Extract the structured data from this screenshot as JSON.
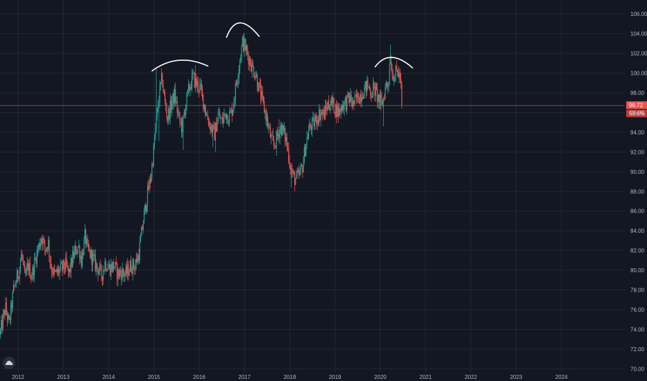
{
  "chart_data": {
    "type": "candlestick",
    "title": "",
    "xlabel": "",
    "ylabel": "",
    "x_range": [
      2011.6,
      2025.4
    ],
    "ylim": [
      69.6,
      107.0
    ],
    "x_ticks": [
      "2012",
      "2013",
      "2014",
      "2015",
      "2016",
      "2017",
      "2018",
      "2019",
      "2020",
      "2021",
      "2022",
      "2023",
      "2024"
    ],
    "y_ticks": [
      "70.00",
      "72.00",
      "74.00",
      "76.00",
      "78.00",
      "80.00",
      "82.00",
      "84.00",
      "86.00",
      "88.00",
      "90.00",
      "92.00",
      "94.00",
      "96.00",
      "98.00",
      "100.00",
      "102.00",
      "104.00",
      "106.00"
    ],
    "colors": {
      "background": "#131722",
      "grid": "#232734",
      "up": "#26a69a",
      "down": "#ef5350",
      "price_line": "#ef5350",
      "annotation": "#ffffff"
    },
    "price_line": {
      "value": 96.72,
      "label": "96.72",
      "countdown": "58:6%"
    },
    "path": [
      [
        2011.6,
        73.5
      ],
      [
        2011.72,
        76.2
      ],
      [
        2011.8,
        74.5
      ],
      [
        2011.9,
        78.0
      ],
      [
        2012.02,
        80.0
      ],
      [
        2012.08,
        81.7
      ],
      [
        2012.15,
        79.0
      ],
      [
        2012.22,
        80.5
      ],
      [
        2012.3,
        79.4
      ],
      [
        2012.4,
        81.5
      ],
      [
        2012.52,
        83.5
      ],
      [
        2012.6,
        82.0
      ],
      [
        2012.66,
        83.0
      ],
      [
        2012.72,
        80.5
      ],
      [
        2012.8,
        79.5
      ],
      [
        2012.92,
        80.0
      ],
      [
        2013.05,
        80.5
      ],
      [
        2013.12,
        79.6
      ],
      [
        2013.22,
        81.5
      ],
      [
        2013.33,
        82.5
      ],
      [
        2013.4,
        81.0
      ],
      [
        2013.48,
        83.5
      ],
      [
        2013.53,
        82.0
      ],
      [
        2013.6,
        81.6
      ],
      [
        2013.72,
        80.5
      ],
      [
        2013.85,
        79.5
      ],
      [
        2013.92,
        80.8
      ],
      [
        2014.02,
        80.2
      ],
      [
        2014.12,
        80.5
      ],
      [
        2014.2,
        79.6
      ],
      [
        2014.28,
        79.8
      ],
      [
        2014.38,
        79.6
      ],
      [
        2014.48,
        80.4
      ],
      [
        2014.58,
        80.5
      ],
      [
        2014.66,
        81.5
      ],
      [
        2014.72,
        83.5
      ],
      [
        2014.78,
        85.5
      ],
      [
        2014.86,
        87.8
      ],
      [
        2014.94,
        89.8
      ],
      [
        2015.0,
        92.5
      ],
      [
        2015.06,
        95.5
      ],
      [
        2015.12,
        98.0
      ],
      [
        2015.18,
        99.5
      ],
      [
        2015.24,
        97.0
      ],
      [
        2015.3,
        95.5
      ],
      [
        2015.38,
        96.8
      ],
      [
        2015.46,
        97.8
      ],
      [
        2015.54,
        95.5
      ],
      [
        2015.62,
        94.5
      ],
      [
        2015.7,
        96.8
      ],
      [
        2015.78,
        98.5
      ],
      [
        2015.86,
        99.6
      ],
      [
        2015.92,
        99.0
      ],
      [
        2016.02,
        98.5
      ],
      [
        2016.1,
        97.0
      ],
      [
        2016.18,
        95.5
      ],
      [
        2016.26,
        94.5
      ],
      [
        2016.34,
        93.8
      ],
      [
        2016.42,
        95.8
      ],
      [
        2016.5,
        95.0
      ],
      [
        2016.58,
        96.0
      ],
      [
        2016.66,
        95.5
      ],
      [
        2016.74,
        96.5
      ],
      [
        2016.82,
        99.0
      ],
      [
        2016.9,
        101.5
      ],
      [
        2016.96,
        103.2
      ],
      [
        2017.02,
        102.5
      ],
      [
        2017.1,
        101.5
      ],
      [
        2017.18,
        100.5
      ],
      [
        2017.24,
        100.0
      ],
      [
        2017.32,
        98.5
      ],
      [
        2017.4,
        97.0
      ],
      [
        2017.48,
        95.6
      ],
      [
        2017.56,
        93.8
      ],
      [
        2017.64,
        92.5
      ],
      [
        2017.72,
        93.5
      ],
      [
        2017.8,
        94.6
      ],
      [
        2017.86,
        94.0
      ],
      [
        2017.92,
        93.2
      ],
      [
        2018.0,
        91.0
      ],
      [
        2018.06,
        89.6
      ],
      [
        2018.12,
        89.2
      ],
      [
        2018.2,
        89.5
      ],
      [
        2018.28,
        90.5
      ],
      [
        2018.36,
        93.0
      ],
      [
        2018.44,
        94.5
      ],
      [
        2018.52,
        94.8
      ],
      [
        2018.6,
        95.5
      ],
      [
        2018.68,
        96.0
      ],
      [
        2018.76,
        95.8
      ],
      [
        2018.84,
        96.8
      ],
      [
        2018.92,
        97.0
      ],
      [
        2019.0,
        96.5
      ],
      [
        2019.08,
        96.0
      ],
      [
        2019.16,
        96.8
      ],
      [
        2019.24,
        97.0
      ],
      [
        2019.32,
        97.5
      ],
      [
        2019.4,
        96.8
      ],
      [
        2019.48,
        97.4
      ],
      [
        2019.56,
        97.8
      ],
      [
        2019.64,
        98.3
      ],
      [
        2019.72,
        98.8
      ],
      [
        2019.8,
        98.0
      ],
      [
        2019.86,
        98.5
      ],
      [
        2019.92,
        97.8
      ],
      [
        2020.0,
        97.0
      ],
      [
        2020.06,
        97.2
      ],
      [
        2020.12,
        98.8
      ],
      [
        2020.18,
        99.0
      ],
      [
        2020.22,
        102.0
      ],
      [
        2020.26,
        100.0
      ],
      [
        2020.32,
        99.8
      ],
      [
        2020.38,
        100.2
      ],
      [
        2020.44,
        99.5
      ],
      [
        2020.48,
        96.7
      ]
    ],
    "spikes": [
      {
        "x": 2015.05,
        "y": 100.4
      },
      {
        "x": 2015.1,
        "y": 93.1
      },
      {
        "x": 2015.65,
        "y": 92.2
      },
      {
        "x": 2015.92,
        "y": 100.8
      },
      {
        "x": 2016.3,
        "y": 92.5
      },
      {
        "x": 2016.36,
        "y": 92.0
      },
      {
        "x": 2016.96,
        "y": 103.8
      },
      {
        "x": 2017.7,
        "y": 91.6
      },
      {
        "x": 2017.76,
        "y": 95.3
      },
      {
        "x": 2018.04,
        "y": 88.4
      },
      {
        "x": 2018.1,
        "y": 88.6
      },
      {
        "x": 2020.08,
        "y": 94.6
      },
      {
        "x": 2020.22,
        "y": 102.9
      },
      {
        "x": 2020.02,
        "y": 96.2
      }
    ],
    "annotations": [
      {
        "type": "arc",
        "label": "left-shoulder",
        "points": [
          [
            2014.95,
            100.2
          ],
          [
            2015.55,
            101.3
          ],
          [
            2016.2,
            100.7
          ]
        ]
      },
      {
        "type": "arc",
        "label": "head",
        "points": [
          [
            2016.6,
            103.6
          ],
          [
            2016.9,
            105.1
          ],
          [
            2017.33,
            103.7
          ]
        ]
      },
      {
        "type": "arc",
        "label": "right-shoulder",
        "points": [
          [
            2019.88,
            100.6
          ],
          [
            2020.25,
            101.6
          ],
          [
            2020.72,
            100.5
          ]
        ]
      }
    ]
  },
  "icons": {
    "logo": "tradingview-cloud-icon"
  }
}
